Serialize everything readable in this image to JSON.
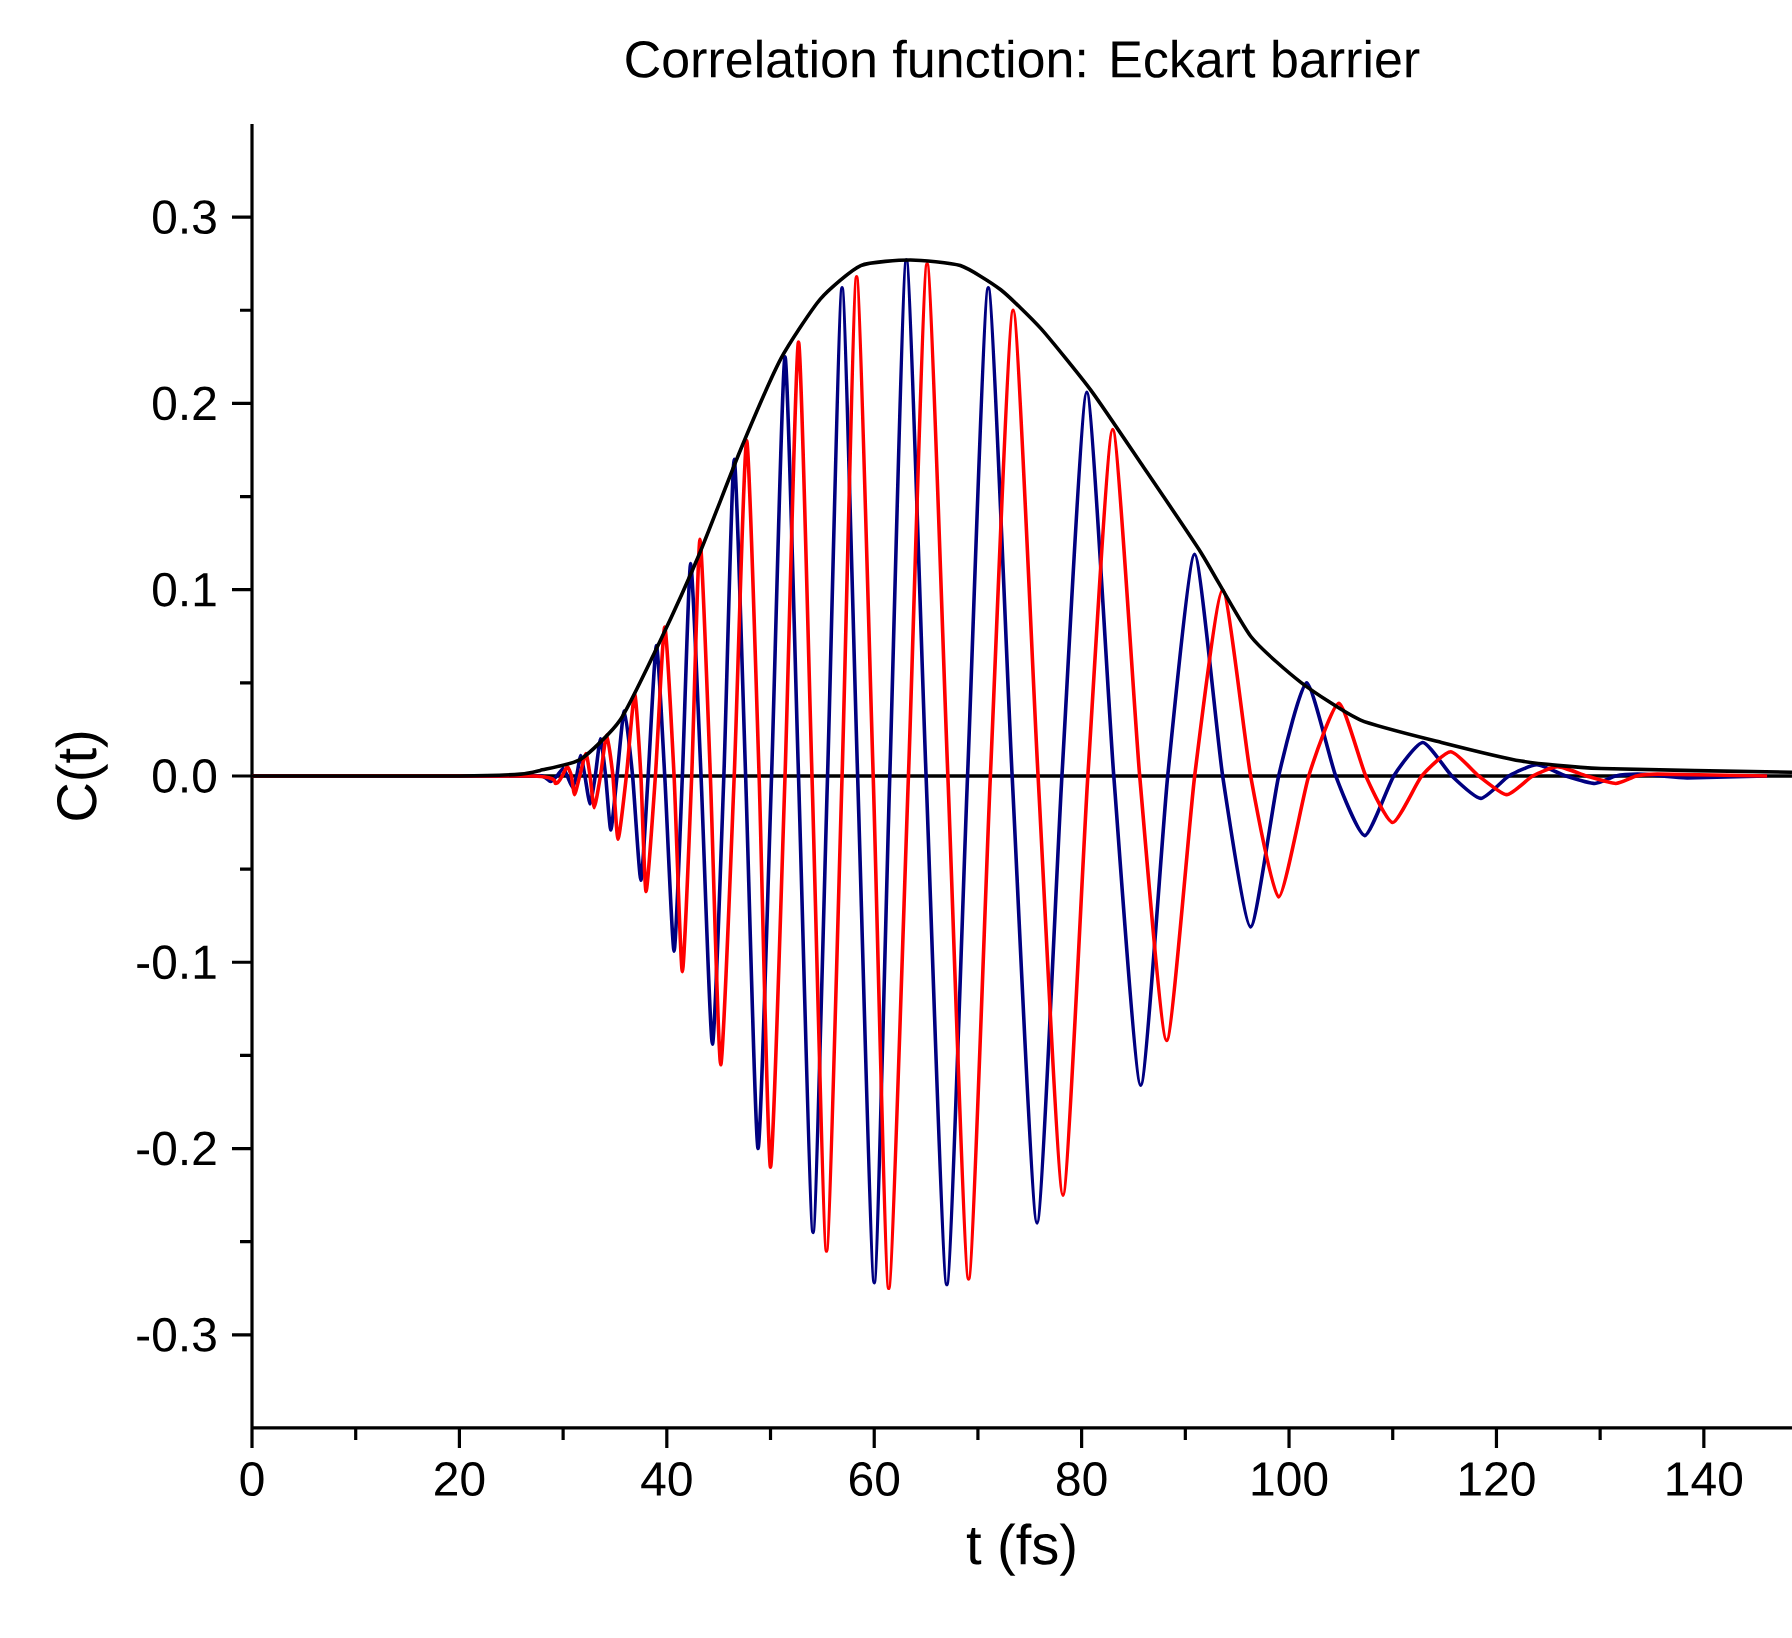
{
  "chart_data": {
    "type": "line",
    "title": "Correlation function: Eckart barrier",
    "xlabel": "t (fs)",
    "ylabel": "C(t)",
    "xlim": [
      0,
      148.5
    ],
    "ylim": [
      -0.35,
      0.35
    ],
    "xticks": [
      0,
      20,
      40,
      60,
      80,
      100,
      120,
      140
    ],
    "yticks": [
      -0.3,
      -0.2,
      -0.1,
      {
        "value": 0,
        "label": "0.0"
      },
      0.1,
      0.2,
      0.3
    ],
    "grid": false,
    "ref_lines": [
      {
        "axis": "y",
        "value": 0,
        "color": "#000000"
      }
    ],
    "series": [
      {
        "color": "#000080",
        "x": [
          0,
          25.9,
          28.0,
          28.8,
          29.4,
          30.0,
          30.4,
          30.9,
          31.3,
          31.7,
          32.1,
          32.6,
          33.1,
          33.6,
          34.1,
          34.6,
          35.2,
          35.9,
          36.7,
          37.5,
          38.2,
          39.0,
          39.8,
          40.7,
          41.5,
          42.3,
          43.3,
          44.4,
          45.5,
          46.5,
          47.6,
          48.8,
          50.1,
          51.4,
          52.7,
          54.1,
          55.5,
          56.9,
          58.4,
          60.0,
          61.5,
          63.1,
          65.0,
          67.0,
          69.0,
          71.0,
          73.3,
          75.7,
          78.1,
          80.5,
          83.1,
          85.7,
          88.3,
          90.9,
          93.6,
          96.3,
          99.0,
          101.7,
          104.5,
          107.3,
          110.1,
          112.9,
          115.7,
          118.5,
          121.2,
          123.9,
          126.7,
          129.5,
          131.5,
          133.6,
          136.0,
          138.4,
          146.1
        ],
        "values": [
          0,
          0,
          0,
          -0.003,
          0,
          0.004,
          0,
          -0.006,
          0,
          0.011,
          0,
          -0.015,
          0,
          0.02,
          0,
          -0.029,
          0,
          0.035,
          0,
          -0.056,
          0,
          0.07,
          0,
          -0.094,
          0,
          0.114,
          0,
          -0.144,
          0,
          0.17,
          0,
          -0.2,
          0,
          0.225,
          0,
          -0.245,
          0,
          0.262,
          0,
          -0.272,
          0,
          0.277,
          0,
          -0.273,
          0,
          0.262,
          0,
          -0.24,
          0,
          0.206,
          0,
          -0.166,
          0,
          0.119,
          0,
          -0.081,
          0,
          0.05,
          0,
          -0.032,
          0,
          0.018,
          0,
          -0.012,
          0,
          0.006,
          0,
          -0.004,
          0,
          0.001,
          0,
          -0.001,
          0
        ]
      },
      {
        "color": "#ff0000",
        "x": [
          0,
          27.0,
          29.3,
          29.9,
          30.4,
          30.8,
          31.1,
          31.6,
          32.2,
          32.6,
          33.0,
          33.6,
          34.2,
          34.8,
          35.3,
          36.1,
          36.9,
          37.5,
          38.0,
          38.9,
          39.8,
          40.7,
          41.5,
          42.4,
          43.2,
          44.2,
          45.2,
          46.5,
          47.7,
          48.9,
          50.0,
          51.4,
          52.7,
          54.0,
          55.4,
          56.9,
          58.3,
          59.9,
          61.4,
          63.3,
          65.1,
          67.1,
          69.1,
          71.2,
          73.4,
          75.8,
          78.2,
          80.6,
          83.0,
          85.6,
          88.2,
          90.9,
          93.6,
          96.3,
          99.0,
          101.9,
          104.8,
          107.4,
          110.0,
          112.8,
          115.6,
          118.3,
          121.0,
          123.5,
          125.9,
          128.7,
          131.5,
          133.5,
          135.5,
          146.1
        ],
        "values": [
          0,
          0,
          -0.004,
          0,
          0.005,
          0,
          -0.01,
          0,
          0.012,
          0,
          -0.017,
          0,
          0.022,
          0,
          -0.034,
          0,
          0.044,
          0,
          -0.062,
          0,
          0.08,
          0,
          -0.105,
          0,
          0.127,
          0,
          -0.155,
          0,
          0.18,
          0,
          -0.21,
          0,
          0.233,
          0,
          -0.255,
          0,
          0.268,
          0,
          -0.275,
          0,
          0.275,
          0,
          -0.27,
          0,
          0.25,
          0,
          -0.225,
          0,
          0.186,
          0,
          -0.142,
          0,
          0.1,
          0,
          -0.065,
          0,
          0.039,
          0,
          -0.025,
          0,
          0.013,
          0,
          -0.01,
          0,
          0.005,
          0,
          -0.004,
          0,
          0.001,
          0
        ]
      },
      {
        "color": "#000000",
        "x": [
          0,
          20.0,
          25.9,
          27.8,
          31.7,
          35.5,
          39.4,
          43.2,
          47.1,
          51.0,
          54.8,
          58.7,
          63.5,
          68.3,
          72.2,
          76.1,
          80.9,
          85.7,
          91.5,
          96.3,
          101.2,
          106.9,
          114.7,
          122.4,
          130.1,
          148.5
        ],
        "values": [
          0,
          0,
          0.001,
          0.003,
          0.009,
          0.03,
          0.073,
          0.12,
          0.175,
          0.224,
          0.256,
          0.274,
          0.277,
          0.274,
          0.261,
          0.24,
          0.207,
          0.168,
          0.12,
          0.075,
          0.05,
          0.03,
          0.018,
          0.008,
          0.004,
          0.002
        ]
      }
    ]
  }
}
